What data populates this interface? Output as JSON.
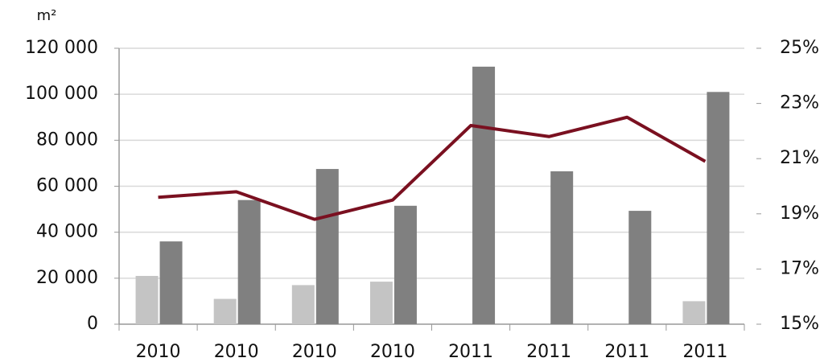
{
  "chart_data": {
    "type": "bar",
    "y_axis_label": "m²",
    "categories": [
      "2010",
      "2010",
      "2010",
      "2010",
      "2011",
      "2011",
      "2011",
      "2011"
    ],
    "series": [
      {
        "color": "#c4c4c4",
        "values": [
          21000,
          11000,
          17000,
          18500,
          null,
          null,
          null,
          10000
        ]
      },
      {
        "color": "#808080",
        "values": [
          36000,
          54000,
          67500,
          51500,
          112000,
          66500,
          49300,
          101000
        ]
      },
      {
        "type": "line",
        "axis": "y2",
        "color": "#7a1020",
        "values": [
          19.6,
          19.8,
          18.8,
          19.5,
          22.2,
          21.8,
          22.5,
          20.9
        ]
      }
    ],
    "ylim": [
      0,
      120000
    ],
    "yticks": [
      0,
      {
        "value": 20000,
        "label": "20 000"
      },
      {
        "value": 40000,
        "label": "40 000"
      },
      {
        "value": 60000,
        "label": "60 000"
      },
      {
        "value": 80000,
        "label": "80 000"
      },
      {
        "value": 100000,
        "label": "100 000"
      },
      {
        "value": 120000,
        "label": "120 000"
      }
    ],
    "y2lim": [
      15,
      25
    ],
    "y2ticks": [
      {
        "value": 15,
        "label": "15%"
      },
      {
        "value": 17,
        "label": "17%"
      },
      {
        "value": 19,
        "label": "19%"
      },
      {
        "value": 21,
        "label": "21%"
      },
      {
        "value": 23,
        "label": "23%"
      },
      {
        "value": 25,
        "label": "25%"
      }
    ],
    "grid": true
  }
}
